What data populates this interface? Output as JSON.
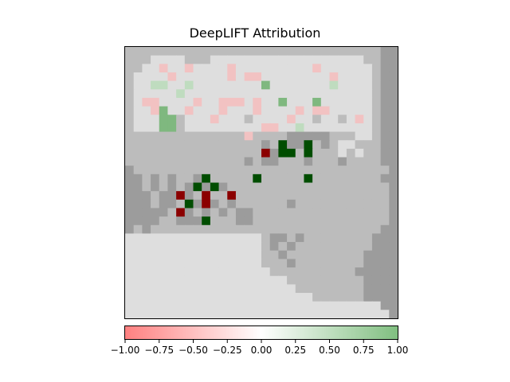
{
  "chart_data": {
    "type": "heatmap",
    "title": "DeepLIFT Attribution",
    "grid": false,
    "colorbar": {
      "orientation": "horizontal",
      "placement": "bottom",
      "vmin": -1.0,
      "vmax": 1.0,
      "ticks": [
        -1.0,
        -0.75,
        -0.5,
        -0.25,
        0.0,
        0.25,
        0.5,
        0.75,
        1.0
      ],
      "tick_labels": [
        "−1.00",
        "−0.75",
        "−0.50",
        "−0.25",
        "0.00",
        "0.25",
        "0.50",
        "0.75",
        "1.00"
      ],
      "color_low": "#ff8080",
      "color_mid": "#ffffff",
      "color_high": "#80bf80"
    },
    "cmap_negative_strong": "#8b0000",
    "cmap_positive_strong": "#004d00",
    "rows": 32,
    "cols": 32,
    "values": [
      "ggggggggggggggggggggggggggggggGG",
      "gggwwwwgggwwwwwwwwwwwwwwwwwwggGG",
      "ggwwxwwxwwwwxwwwwwwwwwxwwwwwwgGG",
      "gwwwwxwwwwwwxwxxwwwwwwwwxwwwwgGG",
      "gwwppwwpwwwwwwwwPwwwwwwwpwwwwgGG",
      "gwwwwwpwwwwwwwwwwwwwwwwwwwwwwgGG",
      "gwxxwwwwxwwxxxwxwwPwwwPwwwwwwgGG",
      "gwwxPwwxwwwxwwwxwwwwxwxxwwwwwgGG",
      "gwwwPPgwwwxwwwgwwwwxwwgwwgwxwgGG",
      "gwwwPPgwwwwwwwwwxxwwpwwwwwwwwgGG",
      "ggggggggggggggxggggGGGGGgggwwgGG",
      "ggggggggggggggggGgqGGqgGgwwgggGG",
      "ggggggggggggggggRGqqgqgggwgwggGG",
      "ggggggggggggggGgGGgggGgggGggggGG",
      "GggggggggggggggggggggggggggggggG",
      "GGgGgGggGqgggggqgggggqggggggggGG",
      "GGgGgGgGqGqGgggggggggggggggggggG",
      "GGGgGGRGgRggRggggggggggggggggggG",
      "GGGgGGgqGRGgGggggggGgggggggggggG",
      "GGGGGgRGgGgGgGGggggggggggggggggG",
      "GGGGggGGGqgggGGggggggggggggggggG",
      "GgGgggggggggggggggggggggggggggGG",
      "wwwwwwwwwwwwwwwwgGGgGggggggggGGG",
      "wwwwwwwwwwwwwwwwgGgGgggggggggGGG",
      "wwwwwwwwwwwwwwwwggGgggggggggGGGG",
      "wwwwwwwwwwwwwwwwgggGggggggggGGGG",
      "wwwwwwwwwwwwwwwwwggggggggggGGGGG",
      "wwwwwwwwwwwwwwwwwwwgggggggggGGGG",
      "wwwwwwwwwwwwwwwwwwwwggggggggGGGG",
      "wwwwwwwwwwwwwwwwwwwwwwggggggGGGG",
      "wwwwwwwwwwwwwwwwwwwwwwwwwwwwwwGG",
      "wwwwwwwwwwwwwwwwwwwwwwwwwwwwwwwG"
    ],
    "legend_codes": {
      "w": "light background",
      "g": "mid gray background",
      "G": "dark gray background",
      "p": "weak positive",
      "P": "positive",
      "q": "strong positive",
      "x": "weak negative",
      "R": "strong negative"
    }
  }
}
